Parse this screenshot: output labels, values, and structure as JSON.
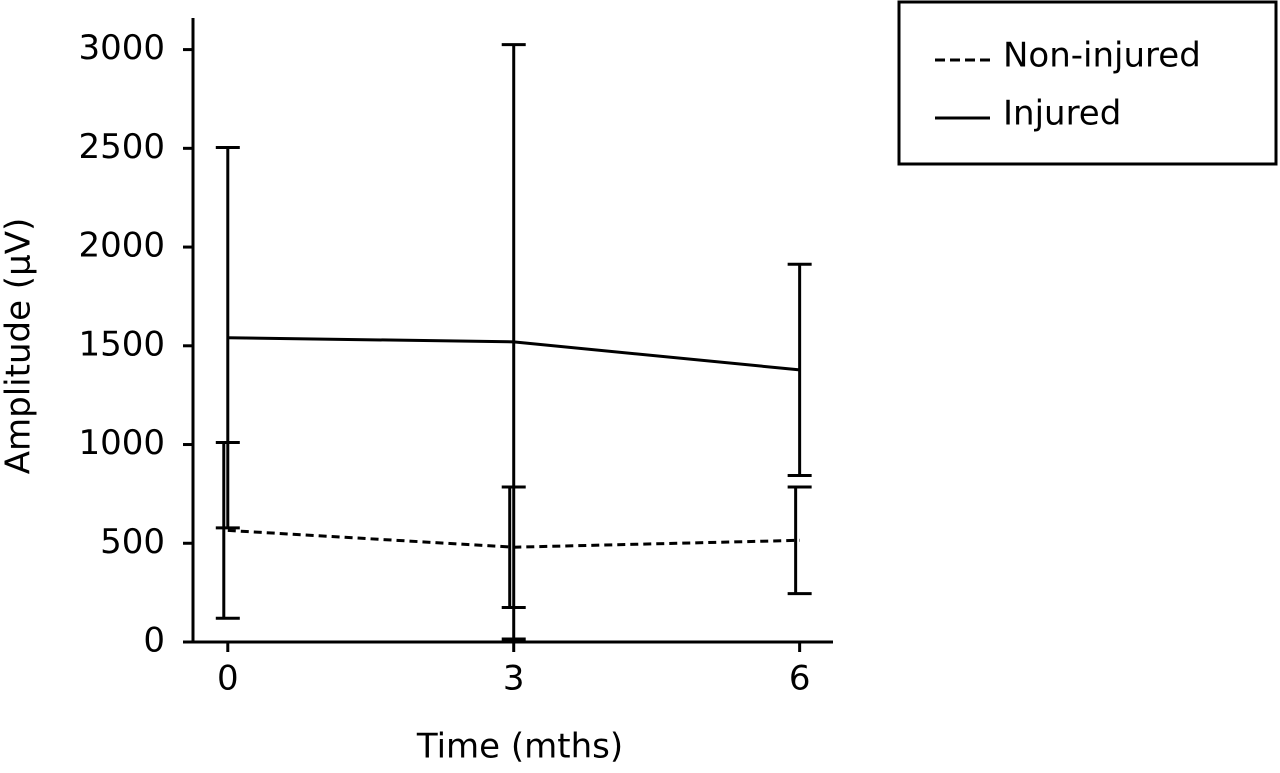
{
  "chart_data": {
    "type": "line",
    "xlabel": "Time (mths)",
    "ylabel": "Amplitude (µV)",
    "x": [
      0,
      3,
      6
    ],
    "series": [
      {
        "name": "Non-injured",
        "color": "#000000",
        "linestyle": "dashed",
        "values": [
          565,
          480,
          515
        ],
        "errors": [
          445,
          305,
          270
        ]
      },
      {
        "name": "Injured",
        "color": "#000000",
        "linestyle": "solid",
        "values": [
          1541,
          1520,
          1378
        ],
        "errors": [
          963,
          1505,
          535
        ]
      }
    ],
    "xlim": [
      -0.47,
      6.35
    ],
    "xticks": [
      0,
      3,
      6
    ],
    "ylim": [
      0,
      3160
    ],
    "yticks": [
      0,
      500,
      1000,
      1500,
      2000,
      2500,
      3000
    ],
    "legend": "upper right",
    "grid": false
  }
}
